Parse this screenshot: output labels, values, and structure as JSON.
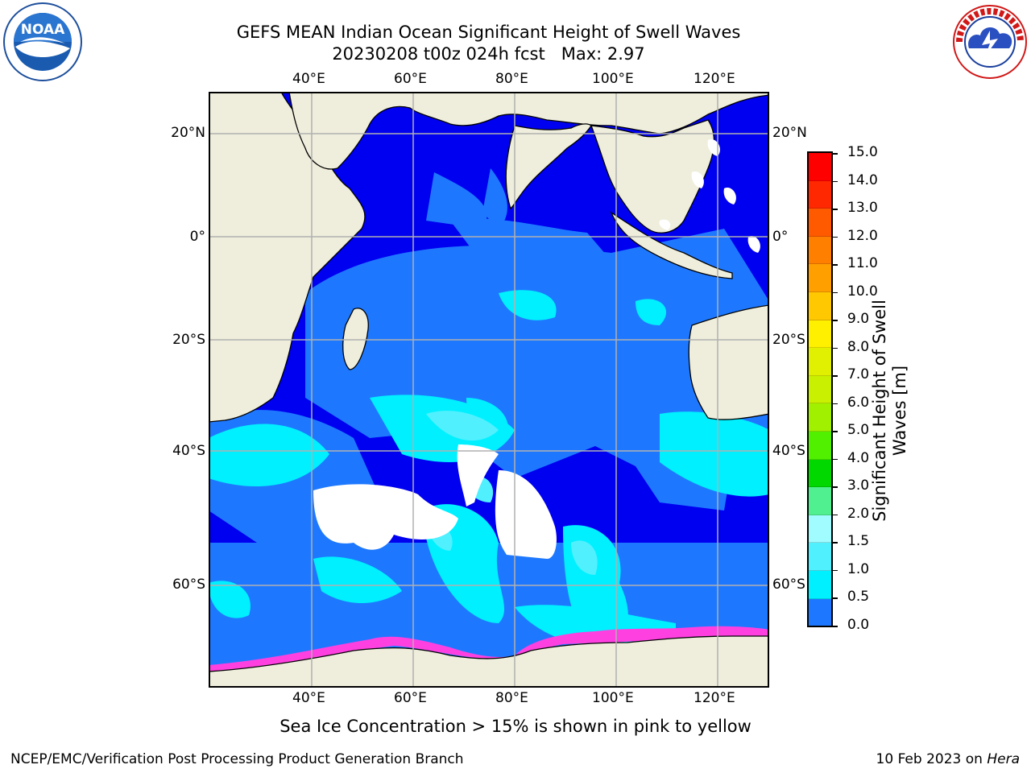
{
  "title": {
    "line1": "GEFS MEAN Indian Ocean Significant Height of Swell Waves",
    "line2": "20230208 t00z 024h fcst   Max: 2.97"
  },
  "logos": {
    "noaa_text": "NOAA",
    "noaa_ring_text": "NATIONAL OCEANIC AND ATMOSPHERIC ADMINISTRATION · U.S. DEPARTMENT OF COMMERCE",
    "nws_ring_text": "NATIONAL WEATHER SERVICE"
  },
  "map": {
    "lon_ticks": [
      "40°E",
      "60°E",
      "80°E",
      "100°E",
      "120°E"
    ],
    "lat_ticks_left": [
      "20°N",
      "0°",
      "20°S",
      "40°S",
      "60°S"
    ],
    "lat_ticks_right": [
      "20°N",
      "0°",
      "20°S",
      "40°S",
      "60°S"
    ],
    "grid": true,
    "colors": {
      "land": "#efeedc",
      "ocean_0_05": "#0000f0",
      "ocean_05_10": "#1e78ff",
      "ocean_10_15": "#00f0ff",
      "ocean_15_20": "#50f0ff",
      "ocean_20_25": "#96f8ff",
      "ice": "#ffffff",
      "sea_ice": "#ff40e0"
    }
  },
  "colorbar": {
    "title": "Significant Height of Swell Waves [m]",
    "labels": [
      "15.0",
      "14.0",
      "13.0",
      "12.0",
      "11.0",
      "10.0",
      "9.0",
      "8.0",
      "7.0",
      "6.0",
      "5.0",
      "4.0",
      "3.0",
      "2.0",
      "1.5",
      "1.0",
      "0.5",
      "0.0"
    ],
    "colors": [
      "#ff0000",
      "#ff2800",
      "#ff5a00",
      "#ff8000",
      "#ffa000",
      "#ffc800",
      "#fff000",
      "#e0f000",
      "#c8f000",
      "#a0f000",
      "#50f000",
      "#00d800",
      "#50f090",
      "#a0fcff",
      "#50f0ff",
      "#00f0ff",
      "#1e78ff",
      "#0000f0"
    ]
  },
  "footer": {
    "note": "Sea Ice Concentration > 15% is shown in pink to yellow",
    "left": "NCEP/EMC/Verification Post Processing Product Generation Branch",
    "right_prefix": "10 Feb 2023 on ",
    "right_italic": "Hera"
  }
}
